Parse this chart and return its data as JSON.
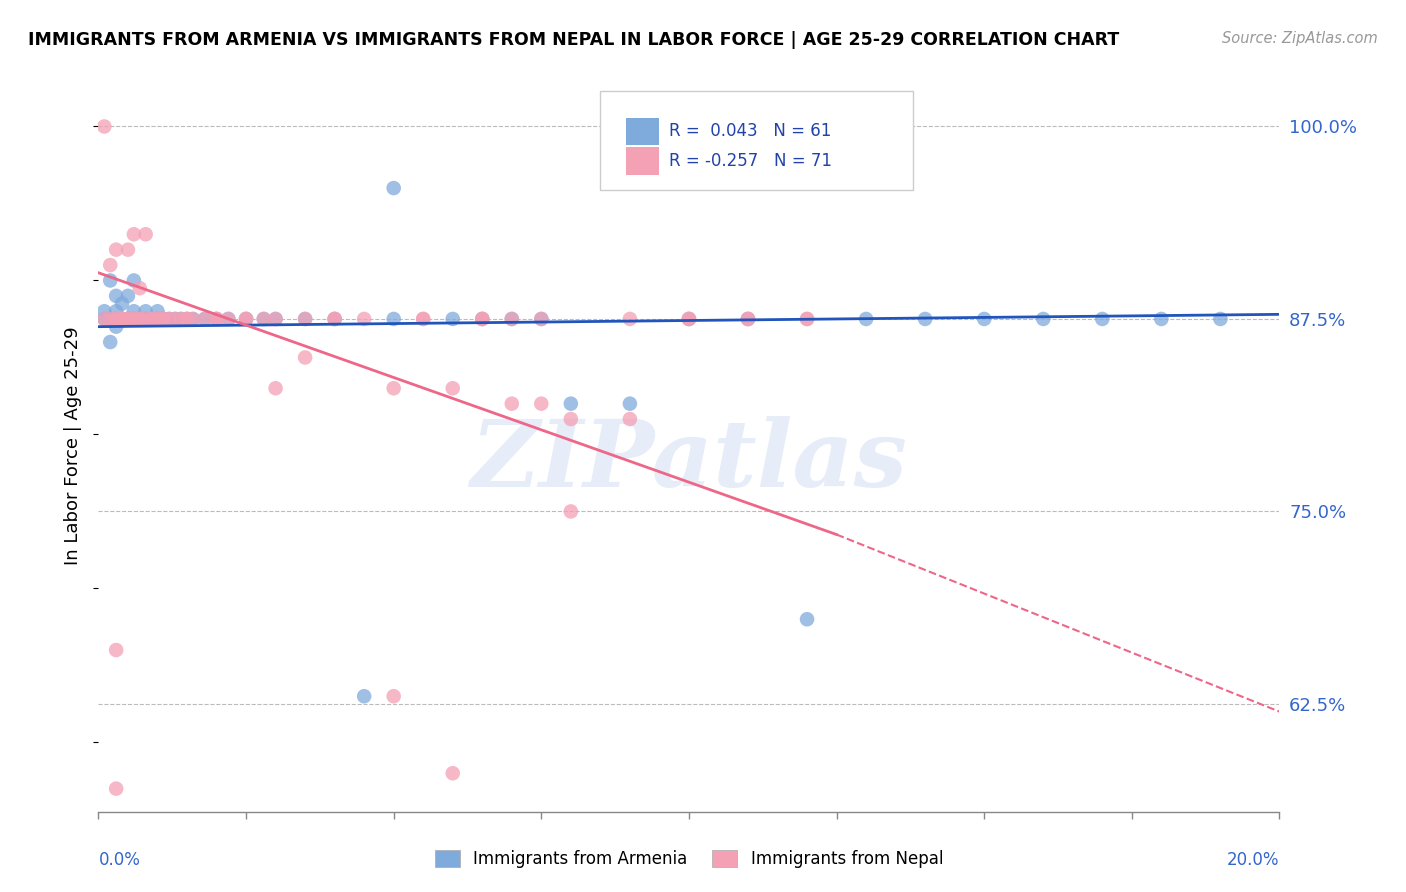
{
  "title": "IMMIGRANTS FROM ARMENIA VS IMMIGRANTS FROM NEPAL IN LABOR FORCE | AGE 25-29 CORRELATION CHART",
  "source": "Source: ZipAtlas.com",
  "ylabel": "In Labor Force | Age 25-29",
  "ytick_labels": [
    "100.0%",
    "87.5%",
    "75.0%",
    "62.5%"
  ],
  "ytick_values": [
    1.0,
    0.875,
    0.75,
    0.625
  ],
  "xlim": [
    0.0,
    0.2
  ],
  "ylim": [
    0.555,
    1.03
  ],
  "color_armenia": "#7faadc",
  "color_nepal": "#f4a0b5",
  "line_color_armenia": "#2255bb",
  "line_color_nepal": "#ee6688",
  "legend_r_armenia": "R =  0.043",
  "legend_n_armenia": "N = 61",
  "legend_r_nepal": "R = -0.257",
  "legend_n_nepal": "N = 71",
  "watermark": "ZIPatlas",
  "arm_line": [
    0.0,
    0.2,
    0.87,
    0.878
  ],
  "nep_solid_line": [
    0.0,
    0.125,
    0.905,
    0.735
  ],
  "nep_dash_line": [
    0.125,
    0.2,
    0.735,
    0.62
  ],
  "armenia_scatter_x": [
    0.001,
    0.001,
    0.002,
    0.002,
    0.002,
    0.003,
    0.003,
    0.003,
    0.003,
    0.004,
    0.004,
    0.004,
    0.005,
    0.005,
    0.005,
    0.006,
    0.006,
    0.006,
    0.007,
    0.007,
    0.007,
    0.008,
    0.008,
    0.009,
    0.009,
    0.01,
    0.01,
    0.011,
    0.011,
    0.012,
    0.013,
    0.014,
    0.015,
    0.016,
    0.018,
    0.02,
    0.022,
    0.025,
    0.028,
    0.03,
    0.035,
    0.04,
    0.05,
    0.06,
    0.07,
    0.08,
    0.09,
    0.1,
    0.12,
    0.13,
    0.14,
    0.15,
    0.16,
    0.17,
    0.18,
    0.19,
    0.05,
    0.065,
    0.075,
    0.11,
    0.045
  ],
  "armenia_scatter_y": [
    0.875,
    0.88,
    0.86,
    0.875,
    0.9,
    0.87,
    0.88,
    0.875,
    0.89,
    0.875,
    0.885,
    0.875,
    0.875,
    0.89,
    0.875,
    0.875,
    0.9,
    0.88,
    0.875,
    0.875,
    0.875,
    0.875,
    0.88,
    0.875,
    0.875,
    0.875,
    0.88,
    0.875,
    0.875,
    0.875,
    0.875,
    0.875,
    0.875,
    0.875,
    0.875,
    0.875,
    0.875,
    0.875,
    0.875,
    0.875,
    0.875,
    0.875,
    0.96,
    0.875,
    0.875,
    0.82,
    0.82,
    0.875,
    0.68,
    0.875,
    0.875,
    0.875,
    0.875,
    0.875,
    0.875,
    0.875,
    0.875,
    0.875,
    0.875,
    0.875,
    0.63
  ],
  "nepal_scatter_x": [
    0.001,
    0.001,
    0.002,
    0.002,
    0.003,
    0.003,
    0.003,
    0.004,
    0.004,
    0.004,
    0.005,
    0.005,
    0.005,
    0.006,
    0.006,
    0.006,
    0.007,
    0.007,
    0.007,
    0.008,
    0.008,
    0.009,
    0.009,
    0.01,
    0.01,
    0.011,
    0.011,
    0.012,
    0.013,
    0.014,
    0.015,
    0.015,
    0.016,
    0.018,
    0.02,
    0.022,
    0.025,
    0.028,
    0.03,
    0.035,
    0.04,
    0.05,
    0.055,
    0.06,
    0.065,
    0.07,
    0.075,
    0.08,
    0.09,
    0.1,
    0.11,
    0.12,
    0.02,
    0.025,
    0.03,
    0.035,
    0.04,
    0.045,
    0.05,
    0.055,
    0.06,
    0.065,
    0.07,
    0.075,
    0.08,
    0.09,
    0.1,
    0.11,
    0.12,
    0.003,
    0.003
  ],
  "nepal_scatter_y": [
    1.0,
    0.875,
    0.875,
    0.91,
    0.875,
    0.92,
    0.875,
    0.875,
    0.875,
    0.875,
    0.875,
    0.92,
    0.875,
    0.875,
    0.875,
    0.93,
    0.875,
    0.875,
    0.895,
    0.875,
    0.93,
    0.875,
    0.875,
    0.875,
    0.875,
    0.875,
    0.875,
    0.875,
    0.875,
    0.875,
    0.875,
    0.875,
    0.875,
    0.875,
    0.875,
    0.875,
    0.875,
    0.875,
    0.83,
    0.85,
    0.875,
    0.83,
    0.875,
    0.83,
    0.875,
    0.82,
    0.82,
    0.81,
    0.81,
    0.875,
    0.875,
    0.875,
    0.875,
    0.875,
    0.875,
    0.875,
    0.875,
    0.875,
    0.63,
    0.875,
    0.58,
    0.875,
    0.875,
    0.875,
    0.75,
    0.875,
    0.875,
    0.875,
    0.875,
    0.66,
    0.57
  ]
}
